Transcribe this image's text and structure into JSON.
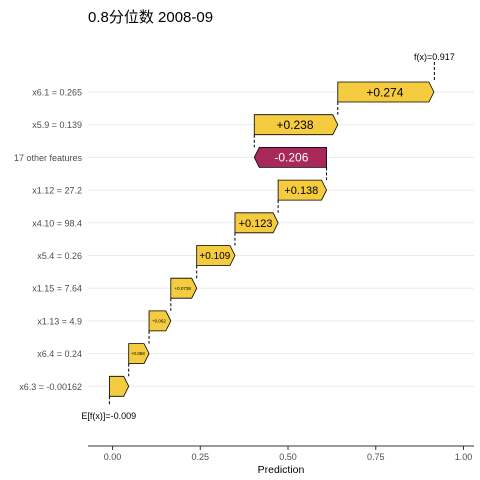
{
  "chart_data": {
    "type": "waterfall",
    "title": "0.8分位数 2008-09",
    "xlabel": "Prediction",
    "ylabel": "",
    "xlim": [
      -0.07,
      1.03
    ],
    "xticks": [
      0.0,
      0.25,
      0.5,
      0.75,
      1.0
    ],
    "xtick_labels": [
      "0.00",
      "0.25",
      "0.50",
      "0.75",
      "1.00"
    ],
    "grid": true,
    "base_value": -0.009,
    "base_label": "E[f(x)]=-0.009",
    "final_value": 0.917,
    "final_label": "f(x)=0.917",
    "colors": {
      "positive": "#f5cc3f",
      "negative": "#a8285a",
      "grid": "#ebebeb",
      "axis": "#333333"
    },
    "features": [
      {
        "label": "x6.1 = 0.265",
        "value": 0.274,
        "value_label": "+0.274"
      },
      {
        "label": "x5.9 = 0.139",
        "value": 0.238,
        "value_label": "+0.238"
      },
      {
        "label": "17 other features",
        "value": -0.206,
        "value_label": "-0.206"
      },
      {
        "label": "x1.12 = 27.2",
        "value": 0.138,
        "value_label": "+0.138"
      },
      {
        "label": "x4.10 = 98.4",
        "value": 0.123,
        "value_label": "+0.123"
      },
      {
        "label": "x5.4 = 0.26",
        "value": 0.109,
        "value_label": "+0.109"
      },
      {
        "label": "x1.15 = 7.64",
        "value": 0.0738,
        "value_label": "+0.0738"
      },
      {
        "label": "x1.13 = 4.9",
        "value": 0.062,
        "value_label": "+0.062"
      },
      {
        "label": "x6.4 = 0.24",
        "value": 0.058,
        "value_label": "+0.058"
      },
      {
        "label": "x6.3 = -0.00162",
        "value": 0.055,
        "value_label": ""
      }
    ]
  }
}
